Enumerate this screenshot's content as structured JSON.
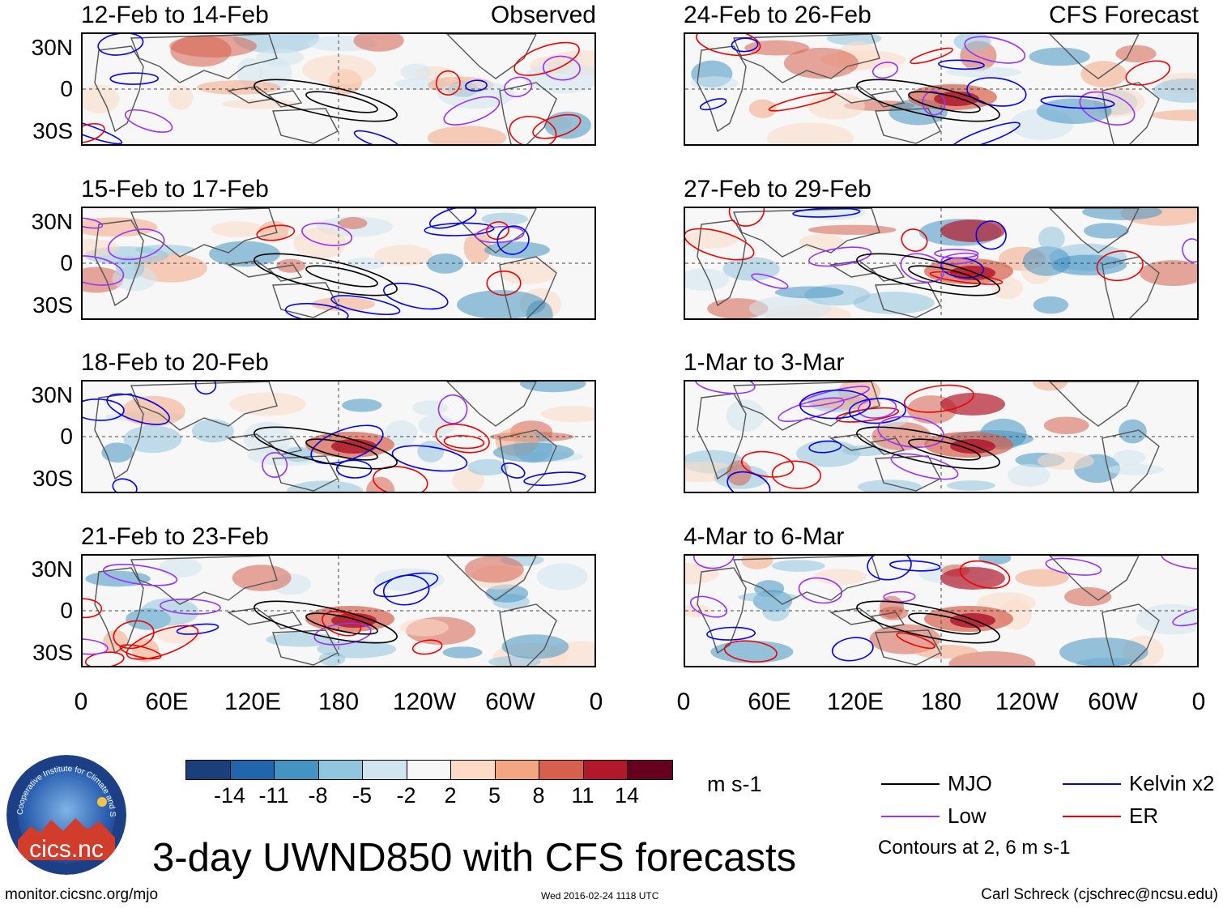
{
  "main_title": "3-day UWND850 with CFS forecasts",
  "column_labels": {
    "observed": "Observed",
    "forecast": "CFS Forecast"
  },
  "panels": [
    {
      "title": "12-Feb to 14-Feb",
      "label": "Observed"
    },
    {
      "title": "15-Feb to 17-Feb",
      "label": ""
    },
    {
      "title": "18-Feb to 20-Feb",
      "label": ""
    },
    {
      "title": "21-Feb to 23-Feb",
      "label": ""
    },
    {
      "title": "24-Feb to 26-Feb",
      "label": "CFS Forecast"
    },
    {
      "title": "27-Feb to 29-Feb",
      "label": ""
    },
    {
      "title": "1-Mar to 3-Mar",
      "label": ""
    },
    {
      "title": "4-Mar to 6-Mar",
      "label": ""
    }
  ],
  "lat_labels": [
    "30N",
    "0",
    "30S"
  ],
  "lon_labels": [
    "0",
    "60E",
    "120E",
    "180",
    "120W",
    "60W",
    "0"
  ],
  "colorbar": {
    "colors": [
      "#1b3f7a",
      "#2166ac",
      "#4393c3",
      "#92c5de",
      "#d1e5f0",
      "#f7f7f7",
      "#fddbc7",
      "#f4a582",
      "#d6604d",
      "#b2182b",
      "#67001f"
    ],
    "ticks": [
      "-14",
      "-11",
      "-8",
      "-5",
      "-2",
      "2",
      "5",
      "8",
      "11",
      "14"
    ],
    "unit": "m s-1"
  },
  "legend": [
    {
      "label": "MJO",
      "color": "#000000"
    },
    {
      "label": "Kelvin x2",
      "color": "#0000ee"
    },
    {
      "label": "Low",
      "color": "#9b30ff"
    },
    {
      "label": "ER",
      "color": "#ee0000"
    }
  ],
  "contour_note": "Contours at 2, 6 m s-1",
  "logo": {
    "text": "cics.nc",
    "ring_text": "Cooperative Institute for Climate and Satellites"
  },
  "footer": {
    "url": "monitor.cicsnc.org/mjo",
    "timestamp": "Wed 2016-02-24 1118 UTC",
    "credit": "Carl Schreck (cjschrec@ncsu.edu)"
  }
}
